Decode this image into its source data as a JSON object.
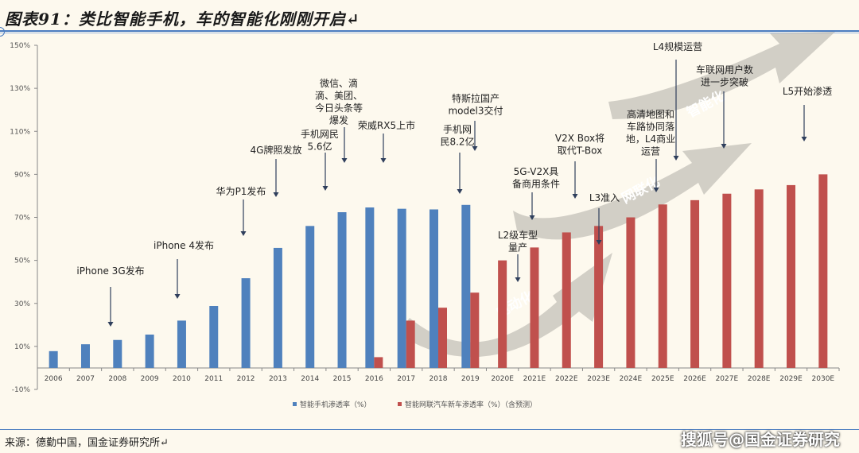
{
  "header": {
    "title": "图表91：类比智能手机，车的智能化刚刚开启↵"
  },
  "footer": {
    "source": "来源：德勤中国，国金证券研究所↵",
    "watermark": "搜狐号@国金证券研究"
  },
  "colors": {
    "smartphone": "#4f81bd",
    "car": "#c0504d",
    "background": "#fdf9ee",
    "accent": "#4a7cc0"
  },
  "chart_data": {
    "type": "bar",
    "title": "类比智能手机，车的智能化刚刚开启",
    "xlabel": "",
    "ylabel": "",
    "ylim": [
      -10,
      150
    ],
    "yticks": [
      -10,
      10,
      30,
      50,
      70,
      90,
      110,
      130,
      150
    ],
    "ytick_labels": [
      "-10%",
      "10%",
      "30%",
      "50%",
      "70%",
      "90%",
      "110%",
      "130%",
      "150%"
    ],
    "categories": [
      "2006",
      "2007",
      "2008",
      "2009",
      "2010",
      "2011",
      "2012",
      "2013",
      "2014",
      "2015",
      "2016",
      "2017",
      "2018",
      "2019",
      "2020E",
      "2021E",
      "2022E",
      "2023E",
      "2024E",
      "2025E",
      "2026E",
      "2027E",
      "2028E",
      "2029E",
      "2030E"
    ],
    "series": [
      {
        "name": "智能手机渗透率（%）",
        "color": "#4f81bd",
        "values": [
          7.8,
          11,
          13,
          15.5,
          22,
          28.8,
          41.7,
          55.8,
          66,
          72.4,
          74.6,
          74,
          73.7,
          75.8,
          null,
          null,
          null,
          null,
          null,
          null,
          null,
          null,
          null,
          null,
          null
        ]
      },
      {
        "name": "智能网联汽车新车渗透率（%）（含预测）",
        "color": "#c0504d",
        "values": [
          null,
          null,
          null,
          null,
          null,
          null,
          null,
          null,
          null,
          null,
          5,
          22,
          28,
          35,
          50,
          56,
          63,
          66,
          70,
          76,
          78,
          81,
          83,
          85,
          90
        ]
      }
    ],
    "legend_position": "bottom",
    "grid": false,
    "trend_arrows": [
      "电动化",
      "网联化",
      "智能化"
    ],
    "annotations": [
      {
        "lines": [
          "iPhone 3G发布"
        ],
        "year": "2008"
      },
      {
        "lines": [
          "iPhone 4发布"
        ],
        "year": "2010"
      },
      {
        "lines": [
          "华为P1发布"
        ],
        "year": "2012"
      },
      {
        "lines": [
          "4G牌照发放"
        ],
        "year": "2013"
      },
      {
        "lines": [
          "手机网民",
          "5.6亿"
        ],
        "year": "2014"
      },
      {
        "lines": [
          "微信、滴",
          "滴、美团、",
          "今日头条等",
          "爆发"
        ],
        "year": "2015"
      },
      {
        "lines": [
          "荣威RX5上市"
        ],
        "year": "2016"
      },
      {
        "lines": [
          "特斯拉国产",
          "model3交付"
        ],
        "year": "2019"
      },
      {
        "lines": [
          "手机网",
          "民8.2亿"
        ],
        "year": "2019"
      },
      {
        "lines": [
          "5G-V2X具",
          "备商用条件"
        ],
        "year": "2021E"
      },
      {
        "lines": [
          "V2X Box将",
          "取代T-Box"
        ],
        "year": "2022E"
      },
      {
        "lines": [
          "L2级车型",
          "量产"
        ],
        "year": "2020E"
      },
      {
        "lines": [
          "L3准入"
        ],
        "year": "2023E"
      },
      {
        "lines": [
          "高清地图和",
          "车路协同落",
          "地，L4商业",
          "运营"
        ],
        "year": "2025E"
      },
      {
        "lines": [
          "L4规模运营"
        ],
        "year": "2026E"
      },
      {
        "lines": [
          "车联网用户数",
          "进一步突破"
        ],
        "year": "2027E"
      },
      {
        "lines": [
          "L5开始渗透"
        ],
        "year": "2030E"
      }
    ]
  }
}
